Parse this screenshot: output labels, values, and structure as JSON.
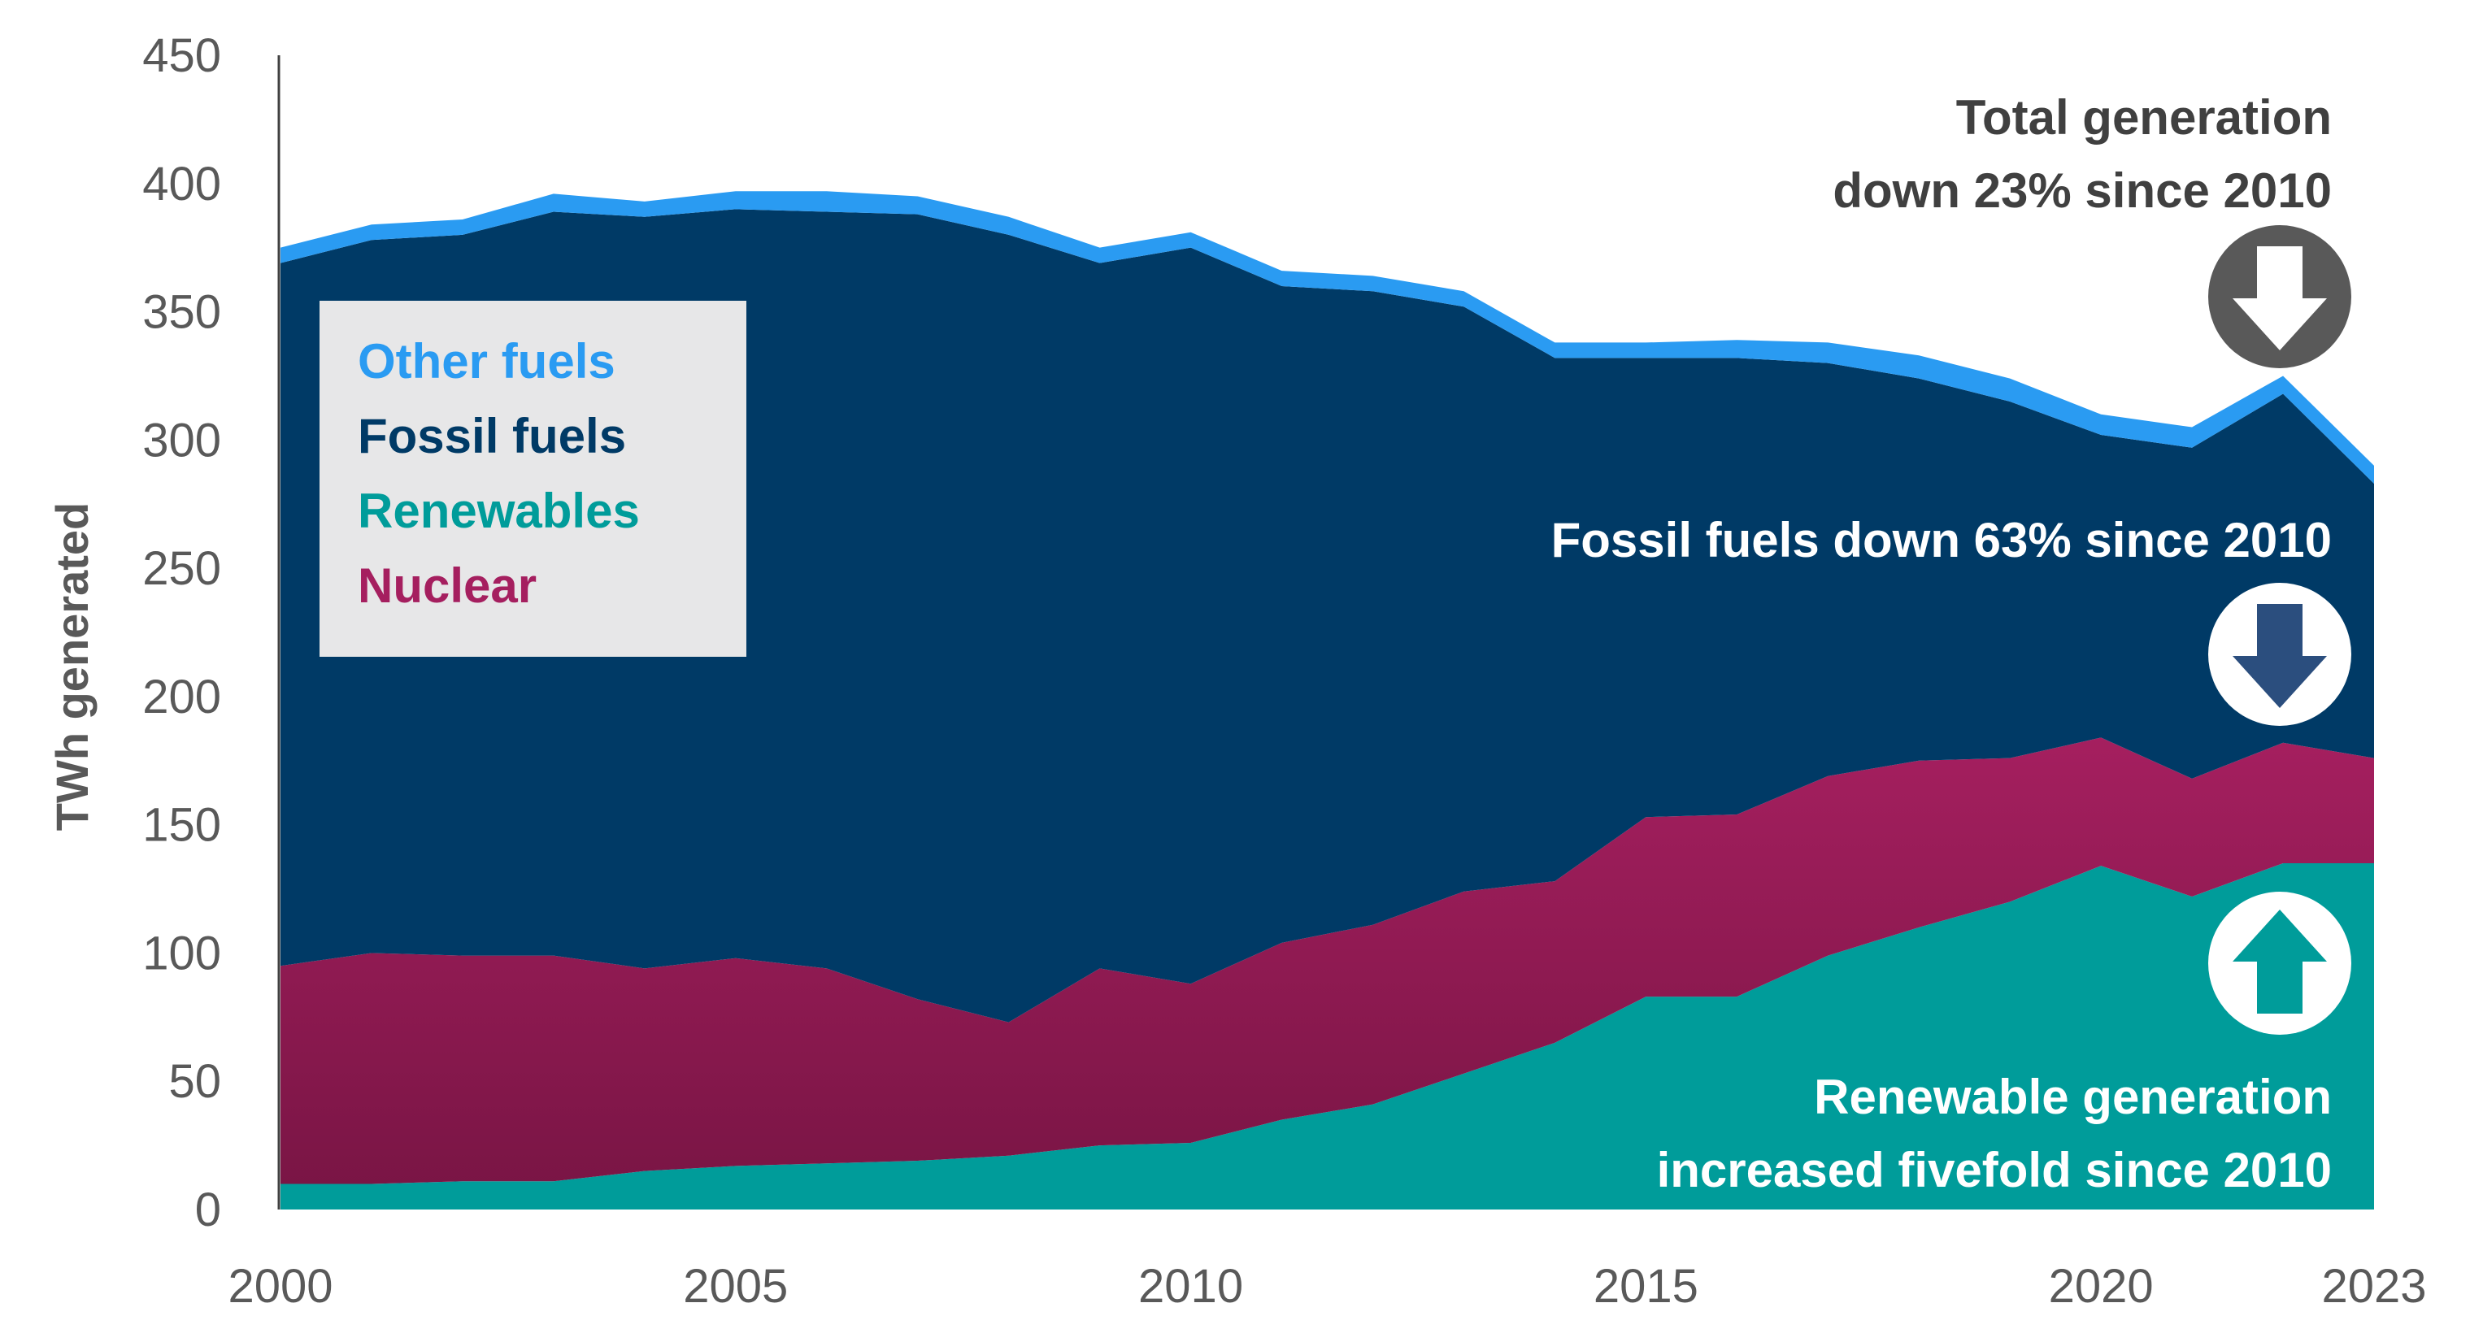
{
  "chart_data": {
    "type": "area",
    "stacked": true,
    "x": [
      2000,
      2001,
      2002,
      2003,
      2004,
      2005,
      2006,
      2007,
      2008,
      2009,
      2010,
      2011,
      2012,
      2013,
      2014,
      2015,
      2016,
      2017,
      2018,
      2019,
      2020,
      2021,
      2022,
      2023
    ],
    "series": [
      {
        "name": "Renewables",
        "color": "#009C9A",
        "values": [
          10,
          10,
          11,
          11,
          15,
          17,
          18,
          19,
          21,
          25,
          26,
          35,
          41,
          53,
          65,
          83,
          83,
          99,
          110,
          120,
          134,
          122,
          135,
          135
        ]
      },
      {
        "name": "Nuclear",
        "color": "#A51F5F",
        "values": [
          85,
          90,
          88,
          88,
          79,
          81,
          76,
          63,
          52,
          69,
          62,
          69,
          70,
          71,
          63,
          70,
          71,
          70,
          65,
          56,
          50,
          46,
          47,
          41
        ]
      },
      {
        "name": "Fossil fuels",
        "color": "#003A66",
        "values": [
          274,
          278,
          281,
          290,
          293,
          292,
          295,
          306,
          307,
          275,
          287,
          256,
          247,
          228,
          204,
          179,
          178,
          161,
          149,
          139,
          118,
          129,
          136,
          107
        ]
      },
      {
        "name": "Other fuels",
        "color": "#2A9BF2",
        "values": [
          6,
          6,
          6,
          7,
          6,
          7,
          8,
          7,
          7,
          6,
          6,
          6,
          6,
          6,
          6,
          6,
          7,
          8,
          9,
          9,
          8,
          8,
          7,
          7
        ]
      }
    ],
    "ylabel": "TWh generated",
    "ylim": [
      0,
      450
    ],
    "yticks": [
      0,
      50,
      100,
      150,
      200,
      250,
      300,
      350,
      400,
      450
    ],
    "xticks": [
      2000,
      2005,
      2010,
      2015,
      2020,
      2023
    ],
    "legend": {
      "position": "top-left",
      "entries": [
        {
          "label": "Other fuels",
          "color": "#2A9BF2"
        },
        {
          "label": "Fossil fuels",
          "color": "#003A66"
        },
        {
          "label": "Renewables",
          "color": "#009C9A"
        },
        {
          "label": "Nuclear",
          "color": "#A51F5F"
        }
      ]
    },
    "annotations": [
      {
        "lines": [
          "Total generation",
          "down 23% since 2010"
        ],
        "color": "#404040",
        "arrow": "down",
        "arrow_fill": "#595959",
        "arrow_inner": "#ffffff"
      },
      {
        "lines": [
          "Fossil fuels down 63% since 2010"
        ],
        "color": "#ffffff",
        "arrow": "down",
        "arrow_fill": "#ffffff",
        "arrow_inner": "#2B4E7E"
      },
      {
        "lines": [
          "Renewable generation",
          "increased fivefold since 2010"
        ],
        "color": "#ffffff",
        "arrow": "up",
        "arrow_fill": "#ffffff",
        "arrow_inner": "#009C9A"
      }
    ]
  }
}
